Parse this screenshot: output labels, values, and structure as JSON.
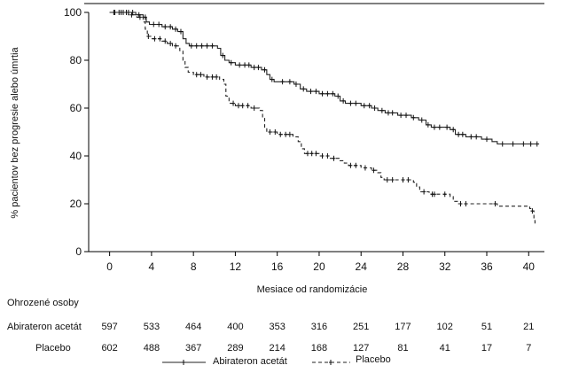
{
  "chart_data": {
    "type": "line",
    "title": "",
    "xlabel": "Mesiace od randomizácie",
    "ylabel": "% pacientov bez progresie alebo úmrtia",
    "xlim": [
      -2,
      41.5
    ],
    "ylim": [
      0,
      100
    ],
    "x_ticks": [
      0,
      4,
      8,
      12,
      16,
      20,
      24,
      28,
      32,
      36,
      40
    ],
    "y_ticks": [
      0,
      20,
      40,
      60,
      80,
      100
    ],
    "grid": false,
    "legend_position": "bottom",
    "series": [
      {
        "name": "Abirateron acetát",
        "line_style": "solid",
        "points": [
          [
            0,
            100
          ],
          [
            1.5,
            100
          ],
          [
            2.5,
            99
          ],
          [
            3.2,
            98
          ],
          [
            3.5,
            96
          ],
          [
            3.8,
            95
          ],
          [
            5,
            94
          ],
          [
            6,
            93
          ],
          [
            6.5,
            92
          ],
          [
            7,
            89
          ],
          [
            7.3,
            87
          ],
          [
            7.6,
            86
          ],
          [
            9.5,
            86
          ],
          [
            10.3,
            85
          ],
          [
            10.6,
            82
          ],
          [
            11,
            80
          ],
          [
            11.4,
            79
          ],
          [
            12,
            78
          ],
          [
            13.5,
            77
          ],
          [
            14.5,
            76
          ],
          [
            15,
            74
          ],
          [
            15.3,
            72
          ],
          [
            15.7,
            71
          ],
          [
            17,
            71
          ],
          [
            17.6,
            70
          ],
          [
            18.2,
            68
          ],
          [
            18.8,
            67
          ],
          [
            20,
            66
          ],
          [
            21.5,
            65
          ],
          [
            22,
            63
          ],
          [
            22.5,
            62
          ],
          [
            24,
            61
          ],
          [
            25,
            60
          ],
          [
            25.6,
            59
          ],
          [
            26.3,
            58
          ],
          [
            27.5,
            57
          ],
          [
            28.8,
            56
          ],
          [
            29.5,
            55
          ],
          [
            30.2,
            53
          ],
          [
            30.7,
            52
          ],
          [
            32.5,
            51
          ],
          [
            33,
            49
          ],
          [
            34,
            48
          ],
          [
            35.5,
            47
          ],
          [
            36.5,
            46
          ],
          [
            37,
            45
          ],
          [
            41,
            45
          ]
        ],
        "censor_x": [
          0.4,
          0.9,
          1.3,
          1.8,
          2.2,
          2.8,
          3.4,
          4.2,
          4.7,
          5.3,
          5.8,
          6.3,
          6.8,
          7.8,
          8.3,
          8.8,
          9.3,
          9.8,
          10.8,
          11.6,
          12.4,
          12.9,
          13.3,
          13.8,
          14.2,
          14.8,
          15.5,
          16.5,
          17.2,
          17.8,
          18.5,
          19.2,
          19.7,
          20.3,
          20.8,
          21.3,
          21.8,
          22.3,
          23,
          23.5,
          24.3,
          24.8,
          25.3,
          26,
          26.6,
          27,
          27.8,
          28.3,
          29,
          29.8,
          30.4,
          31,
          31.5,
          32.2,
          32.8,
          33.3,
          33.7,
          34.5,
          35,
          36,
          37.5,
          38.5,
          39.5,
          40.2,
          40.8
        ]
      },
      {
        "name": "Placebo",
        "line_style": "dashed",
        "points": [
          [
            0,
            100
          ],
          [
            1.8,
            99
          ],
          [
            2.6,
            98
          ],
          [
            3.2,
            96
          ],
          [
            3.4,
            93
          ],
          [
            3.6,
            90
          ],
          [
            4,
            89
          ],
          [
            5,
            88
          ],
          [
            5.5,
            87
          ],
          [
            6,
            86
          ],
          [
            6.7,
            84
          ],
          [
            7,
            80
          ],
          [
            7.2,
            77
          ],
          [
            7.5,
            75
          ],
          [
            8,
            74
          ],
          [
            9,
            73
          ],
          [
            10.5,
            72
          ],
          [
            10.9,
            70
          ],
          [
            11.1,
            65
          ],
          [
            11.4,
            62
          ],
          [
            12,
            61
          ],
          [
            13.5,
            60
          ],
          [
            14.3,
            59
          ],
          [
            14.6,
            56
          ],
          [
            14.8,
            52
          ],
          [
            15,
            50
          ],
          [
            16,
            49
          ],
          [
            17.5,
            48
          ],
          [
            18,
            46
          ],
          [
            18.3,
            43
          ],
          [
            18.6,
            41
          ],
          [
            20,
            40
          ],
          [
            21,
            39
          ],
          [
            22,
            38
          ],
          [
            22.4,
            37
          ],
          [
            22.8,
            36
          ],
          [
            24,
            35
          ],
          [
            25,
            34
          ],
          [
            25.6,
            33
          ],
          [
            25.9,
            31
          ],
          [
            26.2,
            30
          ],
          [
            27.5,
            30
          ],
          [
            29,
            29
          ],
          [
            29.3,
            27
          ],
          [
            29.6,
            25
          ],
          [
            30.5,
            24
          ],
          [
            31.5,
            24
          ],
          [
            32.5,
            23
          ],
          [
            32.8,
            21
          ],
          [
            33.2,
            20
          ],
          [
            34.5,
            20
          ],
          [
            35,
            20
          ],
          [
            37,
            19
          ],
          [
            40,
            19
          ],
          [
            40.1,
            18
          ],
          [
            40.3,
            17
          ],
          [
            40.5,
            13
          ],
          [
            40.6,
            11
          ]
        ],
        "censor_x": [
          0.5,
          1.1,
          1.6,
          2.1,
          2.9,
          3.7,
          4.3,
          4.8,
          5.3,
          5.8,
          6.3,
          8.3,
          8.7,
          9.3,
          9.8,
          10.2,
          11.8,
          12.3,
          12.7,
          13.2,
          13.8,
          15.3,
          15.8,
          16.3,
          16.8,
          17.2,
          18.9,
          19.3,
          19.7,
          20.3,
          20.8,
          21.4,
          23,
          23.5,
          24.4,
          25.2,
          26.5,
          27,
          28,
          28.5,
          30,
          30.8,
          31,
          32,
          33.5,
          34,
          36.8,
          40.35
        ]
      }
    ]
  },
  "risk_table": {
    "title": "Ohrozené osoby",
    "rows": [
      {
        "label": "Abirateron acetát",
        "values": [
          "597",
          "533",
          "464",
          "400",
          "353",
          "316",
          "251",
          "177",
          "102",
          "51",
          "21"
        ]
      },
      {
        "label": "Placebo",
        "values": [
          "602",
          "488",
          "367",
          "289",
          "214",
          "168",
          "127",
          "81",
          "41",
          "17",
          "7"
        ]
      }
    ]
  },
  "legend": {
    "items": [
      "Abirateron acetát",
      "Placebo"
    ]
  }
}
